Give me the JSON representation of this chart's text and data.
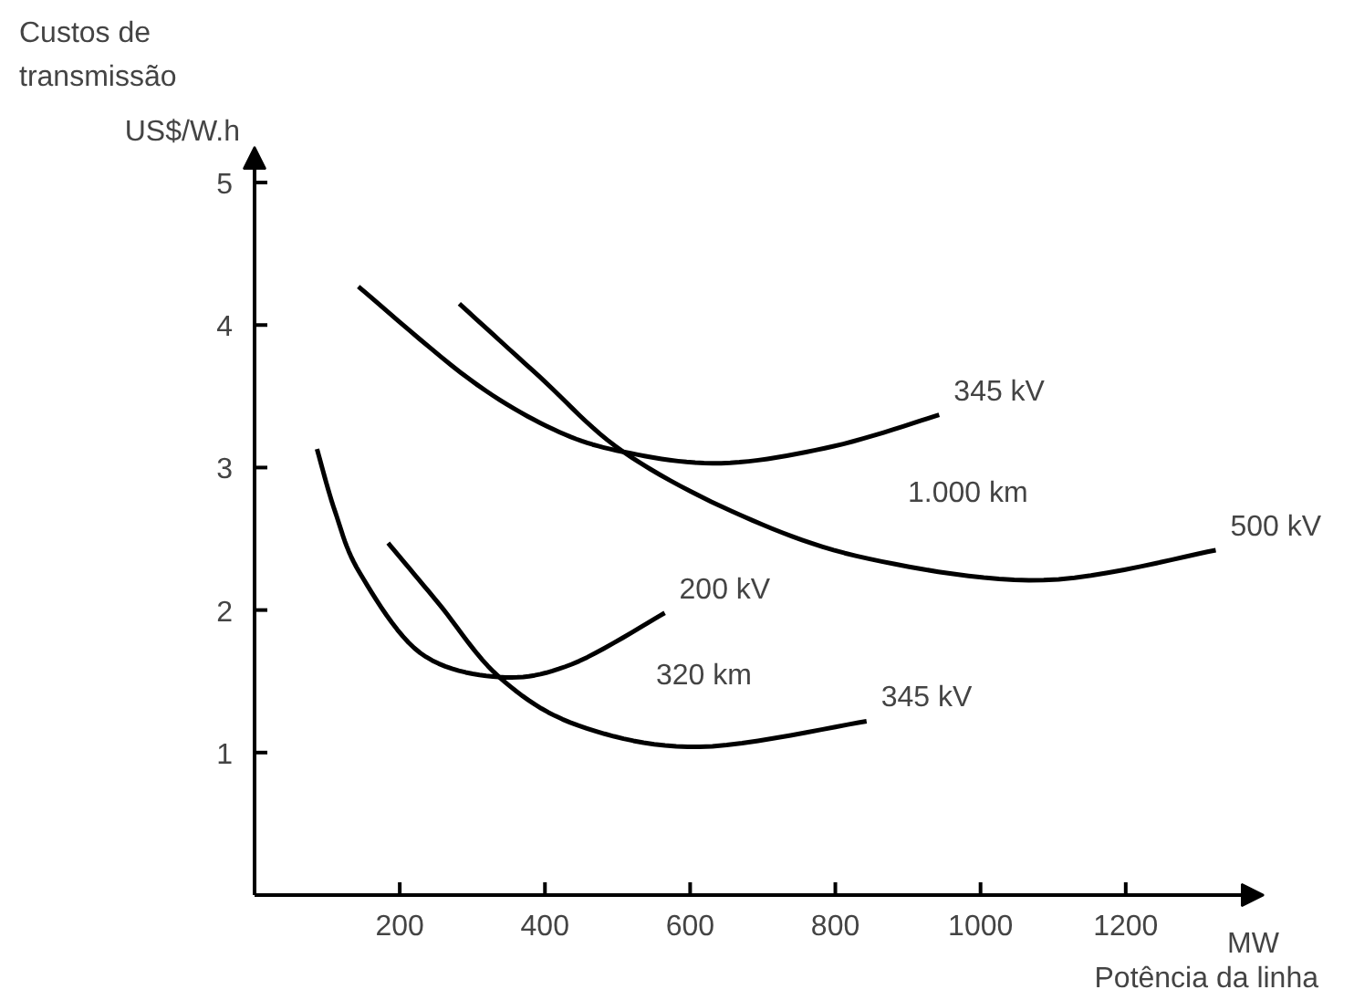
{
  "chart_data": {
    "type": "line",
    "xlabel": "Potência da linha",
    "ylabel": "Custos de transmissão",
    "xlim": [
      0,
      1390
    ],
    "ylim": [
      0,
      5.25
    ],
    "xticks": [
      200,
      400,
      600,
      800,
      1000,
      1200
    ],
    "yticks": [
      1,
      2,
      3,
      4,
      5
    ],
    "grid": false,
    "marker": "none",
    "line_style": "solid",
    "series": [
      {
        "name": "345 kV",
        "color": "#000000",
        "x": [
          143,
          296,
          411,
          508,
          643,
          798,
          943
        ],
        "values": [
          4.27,
          3.62,
          3.27,
          3.11,
          3.03,
          3.15,
          3.37
        ]
      },
      {
        "name": "500 kV",
        "color": "#000000",
        "x": [
          282,
          392,
          508,
          672,
          846,
          1087,
          1324
        ],
        "values": [
          4.15,
          3.64,
          3.11,
          2.66,
          2.36,
          2.21,
          2.42
        ]
      },
      {
        "name": "200 kV",
        "color": "#000000",
        "x": [
          86,
          111,
          145,
          228,
          337,
          437,
          565
        ],
        "values": [
          3.13,
          2.69,
          2.26,
          1.7,
          1.53,
          1.62,
          1.98
        ]
      },
      {
        "name": "345 kV",
        "color": "#000000",
        "x": [
          184,
          253,
          337,
          446,
          613,
          843
        ],
        "values": [
          2.47,
          2.05,
          1.53,
          1.19,
          1.04,
          1.22
        ]
      }
    ],
    "annotations": [
      "US$/W.h",
      "MW",
      "1.000 km",
      "320 km"
    ]
  }
}
